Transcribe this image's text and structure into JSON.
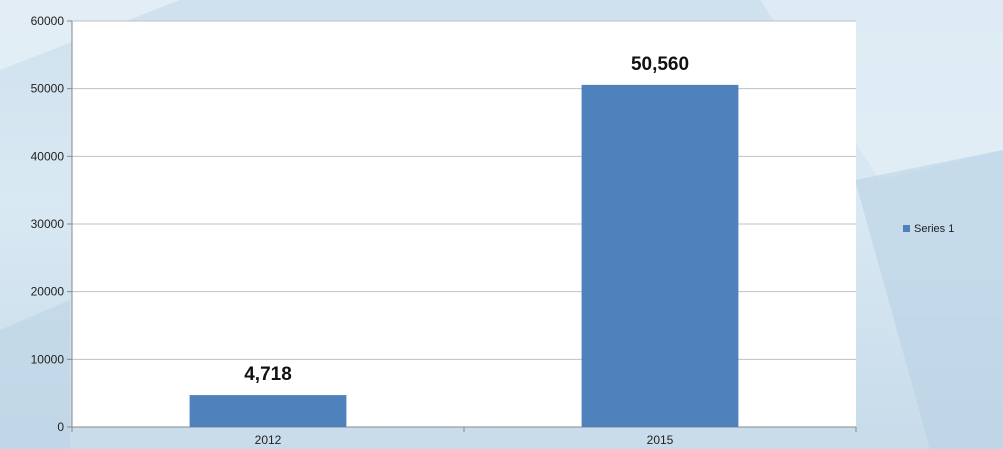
{
  "chart_data": {
    "type": "bar",
    "categories": [
      "2012",
      "2015"
    ],
    "series": [
      {
        "name": "Series 1",
        "values": [
          4718,
          50560
        ],
        "data_labels": [
          "4,718",
          "50,560"
        ],
        "color": "#4f81bd"
      }
    ],
    "title": "",
    "xlabel": "",
    "ylabel": "",
    "ylim": [
      0,
      60000
    ],
    "yticks": [
      0,
      10000,
      20000,
      30000,
      40000,
      50000,
      60000
    ],
    "ytick_labels": [
      "0",
      "10000",
      "20000",
      "30000",
      "40000",
      "50000",
      "60000"
    ],
    "grid": true,
    "legend_position": "right"
  },
  "colors": {
    "plot_background": "#ffffff",
    "gridline": "#c0c0c0",
    "axis": "#888888"
  }
}
